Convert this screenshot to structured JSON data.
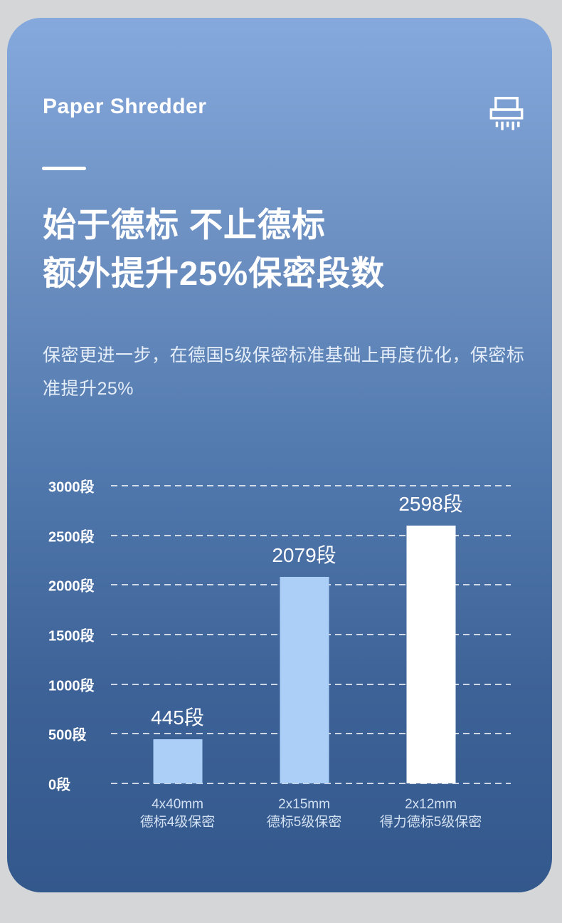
{
  "header": {
    "title": "Paper Shredder",
    "icon": "shredder-icon"
  },
  "headline": {
    "line1": "始于德标 不止德标",
    "line2": "额外提升25%保密段数"
  },
  "subtitle": "保密更进一步，在德国5级保密标准基础上再度优化，保密标准提升25%",
  "colors": {
    "card_gradient_top": "#85a9dd",
    "card_gradient_bottom": "#33588c",
    "page_background": "#d5d6d8",
    "bar_light_blue": "#abcff7",
    "bar_white": "#ffffff",
    "gridline": "rgba(255,255,255,0.75)",
    "x_label_text": "#d3e1f3"
  },
  "chart_data": {
    "type": "bar",
    "unit": "段",
    "categories": [
      {
        "line1": "4x40mm",
        "line2": "德标4级保密"
      },
      {
        "line1": "2x15mm",
        "line2": "德标5级保密"
      },
      {
        "line1": "2x12mm",
        "line2": "得力德标5级保密"
      }
    ],
    "values": [
      445,
      2079,
      2598
    ],
    "value_labels": [
      "445段",
      "2079段",
      "2598段"
    ],
    "bar_colors": [
      "#abcff7",
      "#abcff7",
      "#ffffff"
    ],
    "ytick_values": [
      0,
      500,
      1000,
      1500,
      2000,
      2500,
      3000
    ],
    "ytick_labels": [
      "0段",
      "500段",
      "1000段",
      "1500段",
      "2000段",
      "2500段",
      "3000段"
    ],
    "ylim": [
      0,
      3000
    ],
    "grid": "horizontal-dashed",
    "legend": "none",
    "title": "",
    "xlabel": "",
    "ylabel": ""
  }
}
